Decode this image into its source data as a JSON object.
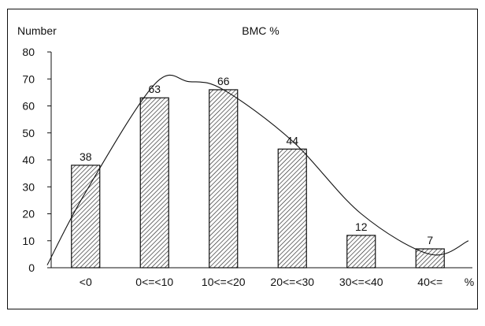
{
  "chart_data": {
    "type": "bar",
    "title": "BMC %",
    "ylabel": "Number",
    "xunit": "%",
    "categories": [
      "<0",
      "0<=<10",
      "10<=<20",
      "20<=<30",
      "30<=<40",
      "40<="
    ],
    "values": [
      38,
      63,
      66,
      44,
      12,
      7
    ],
    "data_labels": [
      "38",
      "63",
      "66",
      "44",
      "12",
      "7"
    ],
    "ylim": [
      0,
      80
    ],
    "yticks": [
      0,
      10,
      20,
      30,
      40,
      50,
      60,
      70,
      80
    ],
    "ytick_labels": [
      "0",
      "10",
      "20",
      "30",
      "40",
      "50",
      "60",
      "70",
      "80"
    ],
    "grid": false,
    "bar_fill": "hatched",
    "fitted_curve": {
      "type": "smooth",
      "y_at_categories": [
        28,
        68,
        66,
        47,
        20,
        5
      ],
      "peak_y": 69
    },
    "colors": {
      "line": "#111111",
      "background": "#ffffff"
    }
  }
}
